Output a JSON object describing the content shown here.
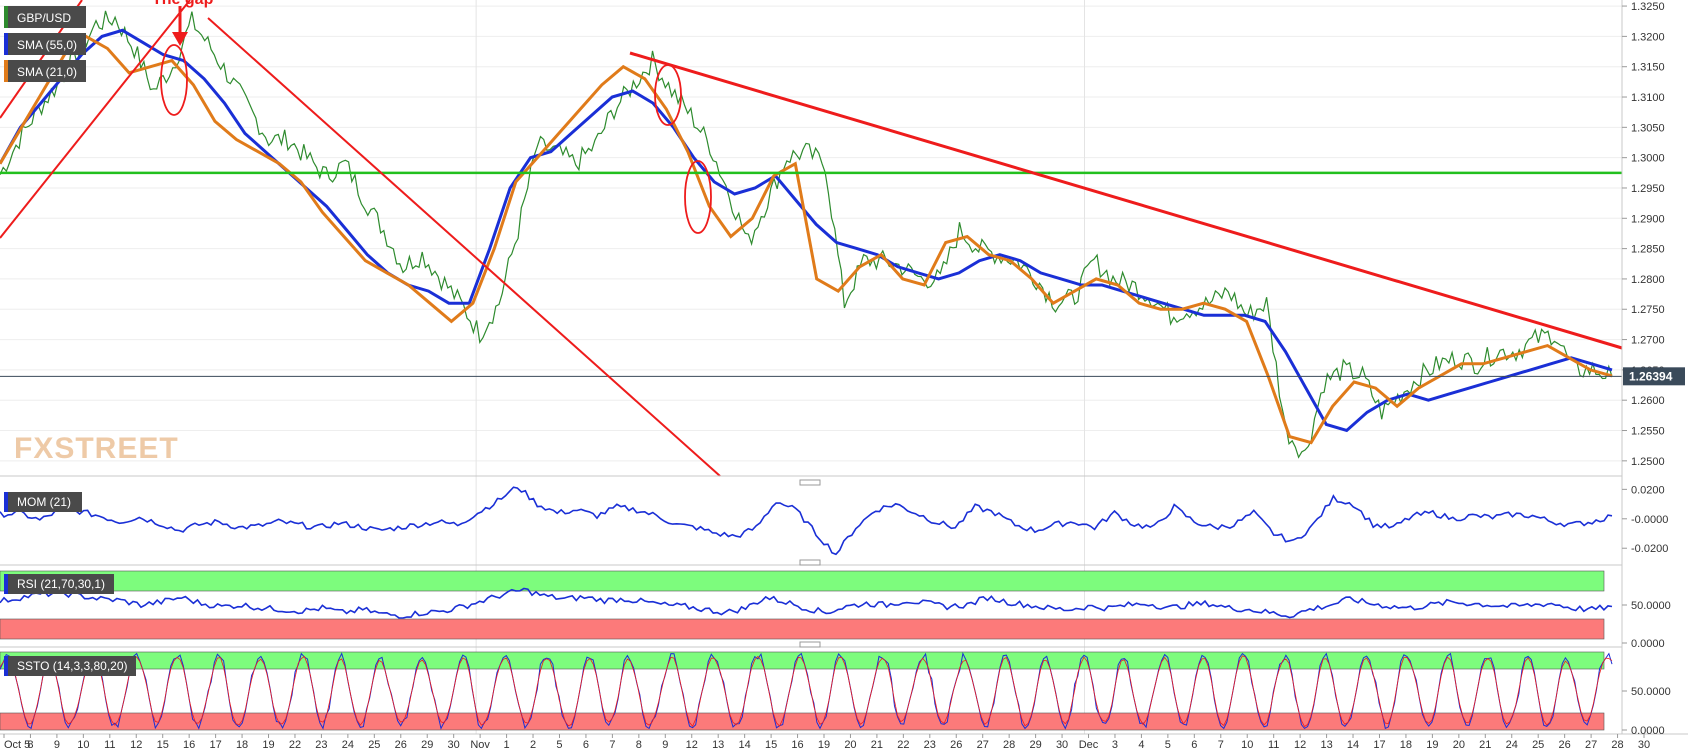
{
  "chart_data": {
    "type": "line",
    "symbol": "GBP/USD",
    "annotation": "The gap",
    "price_panel": {
      "ylim": [
        1.2475,
        1.326
      ],
      "yticks": [
        "1.3250",
        "1.3200",
        "1.3150",
        "1.3100",
        "1.3050",
        "1.3000",
        "1.2950",
        "1.2900",
        "1.2850",
        "1.2800",
        "1.2750",
        "1.2700",
        "1.2650",
        "1.2600",
        "1.2550",
        "1.2500"
      ],
      "last_price": "1.26394",
      "last_price_value": 1.26394,
      "horizontal_level": 1.2975,
      "legend": [
        "GBP/USD",
        "SMA (55,0)",
        "SMA (21,0)"
      ],
      "price_series": [
        1.2972,
        1.303,
        1.308,
        1.312,
        1.317,
        1.322,
        1.323,
        1.318,
        1.311,
        1.315,
        1.3225,
        1.318,
        1.313,
        1.308,
        1.303,
        1.303,
        1.3,
        1.297,
        1.299,
        1.293,
        1.288,
        1.282,
        1.284,
        1.28,
        1.276,
        1.271,
        1.276,
        1.288,
        1.302,
        1.301,
        1.299,
        1.302,
        1.308,
        1.312,
        1.316,
        1.311,
        1.307,
        1.302,
        1.294,
        1.286,
        1.293,
        1.3,
        1.301,
        1.299,
        1.276,
        1.283,
        1.283,
        1.282,
        1.28,
        1.28,
        1.288,
        1.285,
        1.284,
        1.283,
        1.28,
        1.276,
        1.277,
        1.283,
        1.28,
        1.279,
        1.277,
        1.274,
        1.275,
        1.276,
        1.278,
        1.274,
        1.276,
        1.255,
        1.251,
        1.263,
        1.265,
        1.264,
        1.258,
        1.261,
        1.264,
        1.266,
        1.267,
        1.266,
        1.268,
        1.268,
        1.27,
        1.271,
        1.265,
        1.265,
        1.2639
      ],
      "sma55": [
        1.299,
        1.305,
        1.309,
        1.313,
        1.317,
        1.32,
        1.321,
        1.319,
        1.317,
        1.316,
        1.313,
        1.309,
        1.304,
        1.301,
        1.298,
        1.295,
        1.292,
        1.288,
        1.284,
        1.281,
        1.279,
        1.278,
        1.276,
        1.276,
        1.285,
        1.295,
        1.3,
        1.301,
        1.304,
        1.307,
        1.31,
        1.311,
        1.309,
        1.305,
        1.3,
        1.296,
        1.294,
        1.295,
        1.297,
        1.293,
        1.289,
        1.286,
        1.285,
        1.284,
        1.282,
        1.281,
        1.28,
        1.281,
        1.283,
        1.284,
        1.283,
        1.281,
        1.28,
        1.279,
        1.279,
        1.278,
        1.277,
        1.276,
        1.275,
        1.274,
        1.274,
        1.274,
        1.273,
        1.268,
        1.262,
        1.256,
        1.255,
        1.258,
        1.26,
        1.261,
        1.26,
        1.261,
        1.262,
        1.263,
        1.264,
        1.265,
        1.266,
        1.267,
        1.266,
        1.265
      ],
      "sma21": [
        1.299,
        1.305,
        1.311,
        1.317,
        1.32,
        1.318,
        1.314,
        1.315,
        1.316,
        1.312,
        1.306,
        1.303,
        1.301,
        1.299,
        1.296,
        1.291,
        1.287,
        1.283,
        1.281,
        1.279,
        1.276,
        1.273,
        1.276,
        1.285,
        1.296,
        1.3,
        1.304,
        1.308,
        1.312,
        1.315,
        1.313,
        1.308,
        1.301,
        1.292,
        1.287,
        1.29,
        1.297,
        1.299,
        1.28,
        1.278,
        1.282,
        1.284,
        1.28,
        1.279,
        1.286,
        1.287,
        1.284,
        1.283,
        1.28,
        1.276,
        1.278,
        1.28,
        1.279,
        1.276,
        1.275,
        1.275,
        1.276,
        1.275,
        1.273,
        1.264,
        1.254,
        1.253,
        1.259,
        1.263,
        1.262,
        1.259,
        1.262,
        1.264,
        1.266,
        1.266,
        1.267,
        1.268,
        1.269,
        1.267,
        1.265,
        1.264
      ]
    },
    "momentum_panel": {
      "label": "MOM (21)",
      "ylim": [
        -0.028,
        0.025
      ],
      "yticks": [
        "0.0200",
        "-0.0000",
        "-0.0200"
      ],
      "values": [
        0.003,
        0.004,
        -0.001,
        0.006,
        0.005,
        0.002,
        -0.002,
        0.001,
        -0.003,
        -0.008,
        -0.004,
        -0.002,
        -0.006,
        -0.005,
        -0.002,
        -0.004,
        -0.006,
        -0.003,
        -0.005,
        -0.008,
        -0.006,
        -0.004,
        -0.002,
        -0.004,
        0.004,
        0.012,
        0.022,
        0.01,
        0.004,
        0.006,
        0.002,
        0.008,
        0.006,
        0.002,
        -0.004,
        -0.006,
        -0.01,
        -0.012,
        -0.006,
        0.012,
        0.006,
        -0.01,
        -0.024,
        -0.006,
        0.006,
        0.01,
        0.004,
        -0.002,
        -0.006,
        0.008,
        0.004,
        -0.004,
        -0.008,
        -0.004,
        -0.002,
        -0.006,
        0.004,
        -0.004,
        -0.006,
        0.008,
        -0.002,
        -0.006,
        -0.004,
        0.004,
        -0.01,
        -0.016,
        -0.004,
        0.014,
        0.01,
        -0.004,
        -0.006,
        0.002,
        0.004,
        0.0,
        0.002,
        0.001,
        0.003,
        0.002,
        -0.002,
        -0.004,
        -0.002,
        0.002
      ]
    },
    "rsi_panel": {
      "label": "RSI (21,70,30,1)",
      "ylim": [
        0,
        100
      ],
      "yticks": [
        "50.0000",
        "0.0000"
      ],
      "overbought": 70,
      "oversold": 30,
      "values": [
        55,
        60,
        64,
        66,
        62,
        58,
        56,
        50,
        54,
        60,
        52,
        48,
        50,
        46,
        44,
        42,
        46,
        40,
        44,
        38,
        36,
        40,
        42,
        48,
        56,
        64,
        70,
        62,
        58,
        60,
        56,
        58,
        54,
        50,
        48,
        44,
        40,
        46,
        60,
        54,
        46,
        40,
        48,
        52,
        50,
        56,
        52,
        48,
        50,
        60,
        54,
        50,
        46,
        44,
        48,
        46,
        50,
        52,
        46,
        50,
        52,
        46,
        44,
        40,
        36,
        44,
        50,
        58,
        52,
        48,
        46,
        50,
        54,
        52,
        50,
        48,
        50,
        52,
        46,
        44,
        48
      ]
    },
    "stochastic_panel": {
      "label": "SSTO (14,3,3,80,20)",
      "ylim": [
        0,
        100
      ],
      "yticks": [
        "50.0000",
        "0.0000"
      ],
      "overbought": 80,
      "oversold": 20
    },
    "x_axis": {
      "ticks": [
        "Oct 5",
        "8",
        "9",
        "10",
        "11",
        "12",
        "15",
        "16",
        "17",
        "18",
        "19",
        "22",
        "23",
        "24",
        "25",
        "26",
        "29",
        "30",
        "Nov",
        "1",
        "2",
        "5",
        "6",
        "7",
        "8",
        "9",
        "12",
        "13",
        "14",
        "15",
        "16",
        "19",
        "20",
        "21",
        "22",
        "23",
        "26",
        "27",
        "28",
        "29",
        "30",
        "Dec",
        "3",
        "4",
        "5",
        "6",
        "7",
        "10",
        "11",
        "12",
        "13",
        "14",
        "17",
        "18",
        "19",
        "20",
        "21",
        "24",
        "25",
        "26",
        "27",
        "28",
        "30"
      ]
    },
    "watermark": "FXSTREET",
    "colors": {
      "price": "#2e8b2e",
      "sma55": "#1a2fd6",
      "sma21": "#e07b1a",
      "trendlines": "#ee1c1c",
      "support": "#22c01e",
      "indicator": "#1a2fd6",
      "zone_green": "#7dfc7d",
      "zone_red": "#fc7a7a",
      "legend_bg": "#4a4a4a"
    }
  }
}
